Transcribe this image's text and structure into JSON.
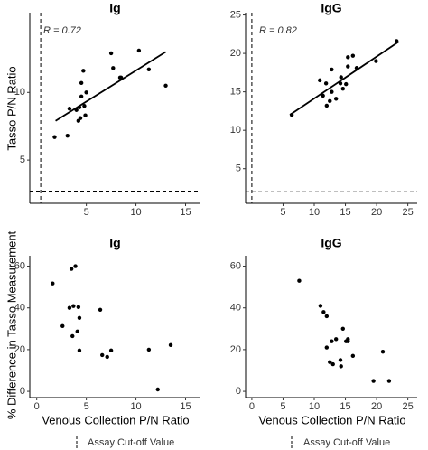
{
  "chart_data": [
    {
      "type": "scatter",
      "title": "Ig",
      "annotation": "R = 0.72",
      "color": "#000000",
      "x": [
        1.8,
        3.1,
        3.3,
        4.0,
        4.2,
        4.3,
        4.4,
        4.5,
        4.5,
        4.7,
        4.8,
        4.9,
        5.0,
        7.5,
        7.7,
        8.4,
        8.5,
        10.3,
        11.3,
        13.0
      ],
      "values": [
        6.7,
        6.8,
        8.8,
        8.7,
        7.9,
        8.9,
        8.1,
        9.7,
        10.7,
        11.6,
        9.0,
        8.3,
        10.0,
        12.9,
        11.8,
        11.1,
        11.1,
        13.1,
        11.7,
        10.5
      ],
      "fit": {
        "x": [
          1.9,
          13.0
        ],
        "y": [
          7.9,
          13.0
        ]
      },
      "cutoff_x": 0.4,
      "cutoff_y": 2.7,
      "xlim": [
        -0.7,
        16.5
      ],
      "ylim": [
        1.8,
        15.9
      ],
      "xticks": [
        5,
        10,
        15
      ],
      "yticks": [
        5,
        10
      ]
    },
    {
      "type": "scatter",
      "title": "IgG",
      "annotation": "R = 0.82",
      "color": "#000000",
      "x": [
        6.4,
        10.9,
        11.4,
        11.9,
        12.0,
        12.5,
        12.8,
        12.8,
        13.5,
        14.2,
        14.3,
        14.6,
        15.1,
        15.4,
        15.4,
        16.2,
        16.8,
        19.9,
        23.2
      ],
      "values": [
        12.0,
        16.5,
        14.5,
        16.1,
        13.2,
        13.8,
        17.9,
        15.0,
        14.1,
        16.1,
        16.9,
        15.4,
        16.0,
        19.5,
        18.3,
        19.7,
        18.1,
        19.0,
        21.6
      ],
      "fit": {
        "x": [
          6.1,
          23.5
        ],
        "y": [
          12.0,
          21.5
        ]
      },
      "cutoff_x": 0,
      "cutoff_y": 2.0,
      "xlim": [
        -1,
        26.5
      ],
      "ylim": [
        0.5,
        25.3
      ],
      "xticks": [
        5,
        10,
        15,
        20,
        25
      ],
      "yticks": [
        5,
        10,
        15,
        20,
        25
      ]
    },
    {
      "type": "scatter",
      "title": "Ig",
      "color": "#000000",
      "x": [
        1.6,
        2.6,
        3.3,
        3.5,
        3.6,
        3.7,
        3.9,
        4.1,
        4.2,
        4.3,
        4.3,
        6.4,
        6.6,
        7.1,
        7.5,
        11.3,
        12.2,
        13.5
      ],
      "values": [
        51.7,
        31.3,
        40,
        58.7,
        26.5,
        40.9,
        60,
        28.7,
        40.4,
        35.2,
        19.6,
        39.1,
        17.4,
        16.5,
        19.6,
        20,
        0.9,
        22.2
      ],
      "xlim": [
        -0.7,
        16.5
      ],
      "ylim": [
        -3,
        65
      ],
      "xticks": [
        0,
        5,
        10,
        15
      ],
      "yticks": [
        0,
        20,
        40,
        60
      ]
    },
    {
      "type": "scatter",
      "title": "IgG",
      "color": "#000000",
      "x": [
        7.6,
        11.0,
        11.5,
        12.0,
        12.0,
        12.5,
        12.8,
        13.0,
        13.5,
        14.2,
        14.3,
        14.6,
        15.1,
        15.4,
        15.4,
        16.2,
        19.5,
        21.0,
        22.0
      ],
      "values": [
        53,
        41,
        38,
        36,
        21,
        14,
        24,
        13,
        25,
        15,
        12,
        30,
        24,
        24,
        25,
        17,
        5,
        19,
        5
      ],
      "xlim": [
        -1,
        26.5
      ],
      "ylim": [
        -3,
        65
      ],
      "xticks": [
        0,
        5,
        10,
        15,
        20,
        25
      ],
      "yticks": [
        0,
        20,
        40,
        60
      ]
    }
  ],
  "y_labels": [
    "Tasso P/N Ratio",
    "% Difference in Tasso Measurement"
  ],
  "x_label": "Venous Collection P/N Ratio",
  "legend_label": "Assay Cut-off Value"
}
